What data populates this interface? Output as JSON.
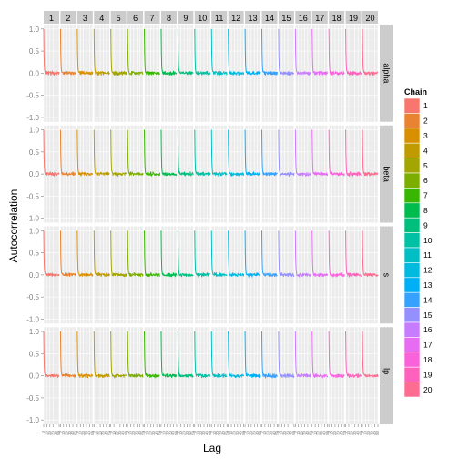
{
  "chart_data": {
    "type": "line",
    "xlabel": "Lag",
    "ylabel": "Autocorrelation",
    "ylim": [
      -1.0,
      1.0
    ],
    "y_ticks": [
      1.0,
      0.5,
      0.0,
      -0.5,
      -1.0
    ],
    "y_tick_labels": [
      "1.0",
      "0.5",
      "0.0",
      "-0.5",
      "-1.0"
    ],
    "xlim": [
      0,
      50
    ],
    "x_ticks": [
      0,
      10,
      20,
      30,
      40,
      50
    ],
    "x_tick_labels": [
      "0",
      "10",
      "20",
      "30",
      "40",
      "50"
    ],
    "grid": true,
    "facet_columns": [
      "1",
      "2",
      "3",
      "4",
      "5",
      "6",
      "7",
      "8",
      "9",
      "10",
      "11",
      "12",
      "13",
      "14",
      "15",
      "16",
      "17",
      "18",
      "19",
      "20"
    ],
    "facet_rows": [
      "alpha",
      "beta",
      "s",
      "lp__"
    ],
    "legend": {
      "title": "Chain",
      "placement": "right",
      "entries": [
        "1",
        "2",
        "3",
        "4",
        "5",
        "6",
        "7",
        "8",
        "9",
        "10",
        "11",
        "12",
        "13",
        "14",
        "15",
        "16",
        "17",
        "18",
        "19",
        "20"
      ]
    },
    "chain_colors": [
      "#F8766D",
      "#EA8331",
      "#D89000",
      "#C09B00",
      "#A3A500",
      "#7CAE00",
      "#39B600",
      "#00BB4E",
      "#00BF7D",
      "#00C1A3",
      "#00BFC4",
      "#00BAE0",
      "#00B0F6",
      "#35A2FF",
      "#9590FF",
      "#C77CFF",
      "#E76BF3",
      "#FA62DB",
      "#FF62BC",
      "#FF6C91"
    ],
    "acf_profile": {
      "lags": [
        0,
        1,
        2,
        3,
        4,
        5,
        6,
        7,
        8,
        9,
        10,
        11,
        12,
        13,
        14,
        15,
        16,
        17,
        18,
        19,
        20,
        21,
        22,
        23,
        24,
        25,
        26,
        27,
        28,
        29,
        30,
        31,
        32,
        33,
        34,
        35,
        36,
        37,
        38,
        39,
        40,
        41,
        42,
        43,
        44,
        45,
        46,
        47,
        48,
        49,
        50
      ],
      "autocorrelation": [
        1.0,
        0.42,
        0.16,
        0.07,
        0.03,
        0.01,
        0.02,
        0.0,
        0.01,
        -0.01,
        0.02,
        0.0,
        -0.02,
        0.01,
        0.0,
        0.02,
        -0.01,
        0.0,
        0.01,
        -0.01,
        0.0,
        0.02,
        0.01,
        -0.02,
        0.0,
        0.01,
        0.0,
        -0.01,
        0.02,
        0.0,
        -0.01,
        0.01,
        0.0,
        0.0,
        -0.02,
        0.01,
        0.0,
        0.01,
        -0.01,
        0.0,
        0.02,
        0.0,
        -0.01,
        0.0,
        0.01,
        -0.01,
        0.0,
        0.01,
        0.0,
        -0.01,
        0.0
      ]
    }
  }
}
